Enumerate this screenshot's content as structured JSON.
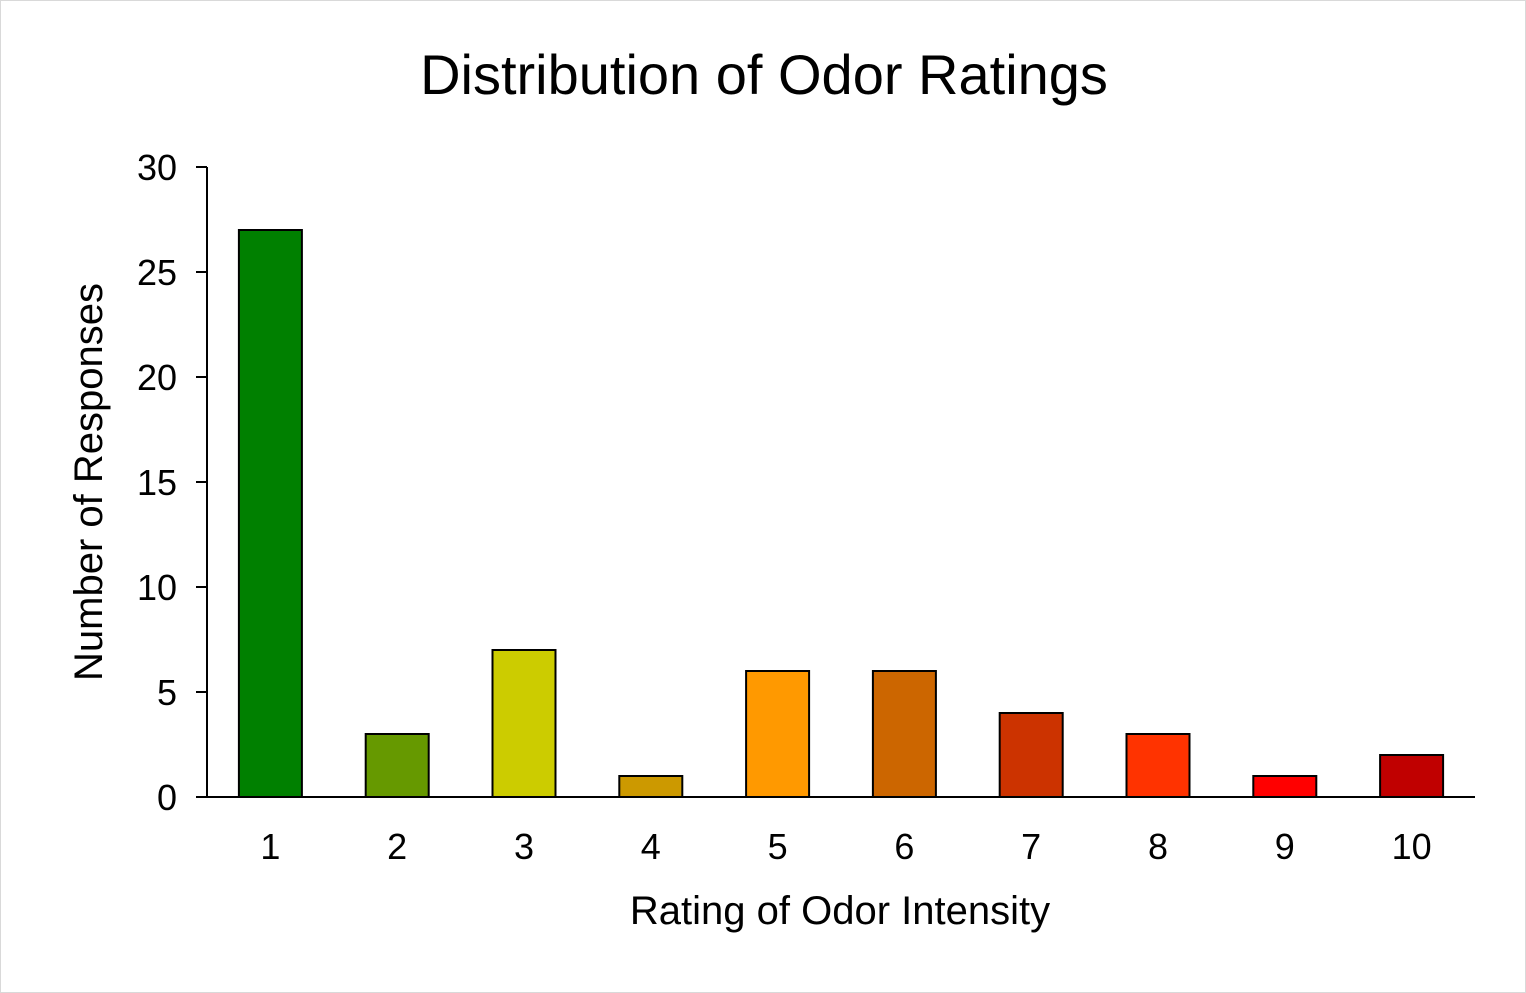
{
  "chart_data": {
    "type": "bar",
    "title": "Distribution of Odor Ratings",
    "xlabel": "Rating of Odor Intensity",
    "ylabel": "Number of Responses",
    "categories": [
      "1",
      "2",
      "3",
      "4",
      "5",
      "6",
      "7",
      "8",
      "9",
      "10"
    ],
    "values": [
      27,
      3,
      7,
      1,
      6,
      6,
      4,
      3,
      1,
      2
    ],
    "colors": [
      "#008000",
      "#669900",
      "#CCCC00",
      "#CC9900",
      "#FF9900",
      "#CC6600",
      "#CC3300",
      "#FF3300",
      "#FF0000",
      "#C00000"
    ],
    "ylim": [
      0,
      30
    ],
    "yticks": [
      0,
      5,
      10,
      15,
      20,
      25,
      30
    ],
    "grid": false,
    "legend": "none"
  }
}
